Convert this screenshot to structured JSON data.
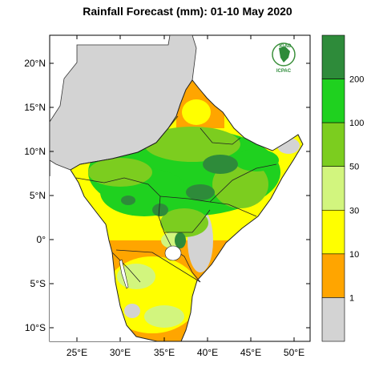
{
  "title": "Rainfall Forecast (mm): 01-10 May 2020",
  "lat_labels": [
    "20°N",
    "15°N",
    "10°N",
    "5°N",
    "0°",
    "5°S",
    "10°S"
  ],
  "lon_labels": [
    "25°E",
    "30°E",
    "35°E",
    "40°E",
    "45°E",
    "50°E"
  ],
  "legend": {
    "thresholds": [
      "200",
      "100",
      "50",
      "30",
      "10",
      "1"
    ],
    "bins": [
      {
        "range": "> 200",
        "color": "#2e8b3a"
      },
      {
        "range": "100-200",
        "color": "#1fd11f"
      },
      {
        "range": "50-100",
        "color": "#7ccd1f"
      },
      {
        "range": "30-50",
        "color": "#d2f57e"
      },
      {
        "range": "10-30",
        "color": "#ffff00"
      },
      {
        "range": "1-10",
        "color": "#ffa500"
      },
      {
        "range": "< 1",
        "color": "#d3d3d3"
      }
    ]
  },
  "logo": {
    "top_text": "IGAD",
    "bottom_text": "ICPAC"
  },
  "colors": {
    "background_country": "#d3d3d3",
    "border": "#333333"
  }
}
